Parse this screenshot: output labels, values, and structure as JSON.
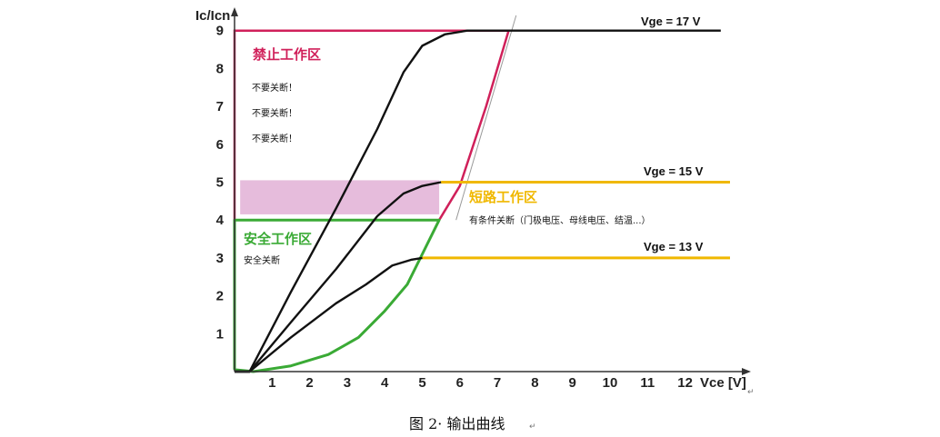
{
  "chart_data": {
    "type": "line",
    "ylabel": "Ic/Icn",
    "xlabel": "Vce [V]",
    "x_ticks": [
      "1",
      "2",
      "3",
      "4",
      "5",
      "6",
      "7",
      "8",
      "9",
      "10",
      "11",
      "12"
    ],
    "y_ticks": [
      "1",
      "2",
      "3",
      "4",
      "5",
      "6",
      "7",
      "8",
      "9"
    ],
    "xlim": [
      0,
      13
    ],
    "ylim": [
      0,
      9.6
    ],
    "grid": false,
    "series": [
      {
        "name": "Vge = 17 V",
        "color": "#111111",
        "points": [
          [
            0,
            0
          ],
          [
            0.4,
            0
          ],
          [
            1.5,
            2.1
          ],
          [
            2.7,
            4.3
          ],
          [
            3.8,
            6.4
          ],
          [
            4.5,
            7.9
          ],
          [
            5.0,
            8.6
          ],
          [
            5.6,
            8.9
          ],
          [
            6.2,
            9.0
          ],
          [
            13,
            9.0
          ]
        ]
      },
      {
        "name": "Vge = 15 V",
        "color": "#111111",
        "points": [
          [
            0,
            0
          ],
          [
            0.4,
            0
          ],
          [
            1.5,
            1.3
          ],
          [
            2.7,
            2.7
          ],
          [
            3.8,
            4.1
          ],
          [
            4.5,
            4.7
          ],
          [
            5.0,
            4.9
          ],
          [
            5.5,
            5.0
          ]
        ]
      },
      {
        "name": "Vge = 13 V",
        "color": "#111111",
        "points": [
          [
            0,
            0
          ],
          [
            0.4,
            0
          ],
          [
            1.5,
            0.9
          ],
          [
            2.7,
            1.8
          ],
          [
            3.5,
            2.3
          ],
          [
            4.2,
            2.8
          ],
          [
            4.7,
            2.95
          ],
          [
            5.0,
            3.0
          ]
        ]
      }
    ],
    "vge_extensions": [
      {
        "y": 5.0,
        "x_from": 5.5,
        "color": "#f0b800"
      },
      {
        "y": 3.0,
        "x_from": 5.0,
        "color": "#f0b800"
      }
    ],
    "zones": [
      {
        "title": "禁止工作区",
        "notes": [
          "不要关断！",
          "不要关断！",
          "不要关断！"
        ],
        "color": "#d0205a"
      },
      {
        "title": "短路工作区",
        "notes": [
          "有条件关断（门极电压、母线电压、结温...）"
        ],
        "color": "#f0b800"
      },
      {
        "title": "安全工作区",
        "notes": [
          "安全关断"
        ],
        "color": "#3aaa35"
      }
    ],
    "highlight_band": {
      "y_from": 4.15,
      "y_to": 5.05,
      "x_from": 0.15,
      "x_to": 5.45,
      "color": "#e2b0d6"
    }
  },
  "caption": "图 2· 输出曲线",
  "return_mark": "↵"
}
